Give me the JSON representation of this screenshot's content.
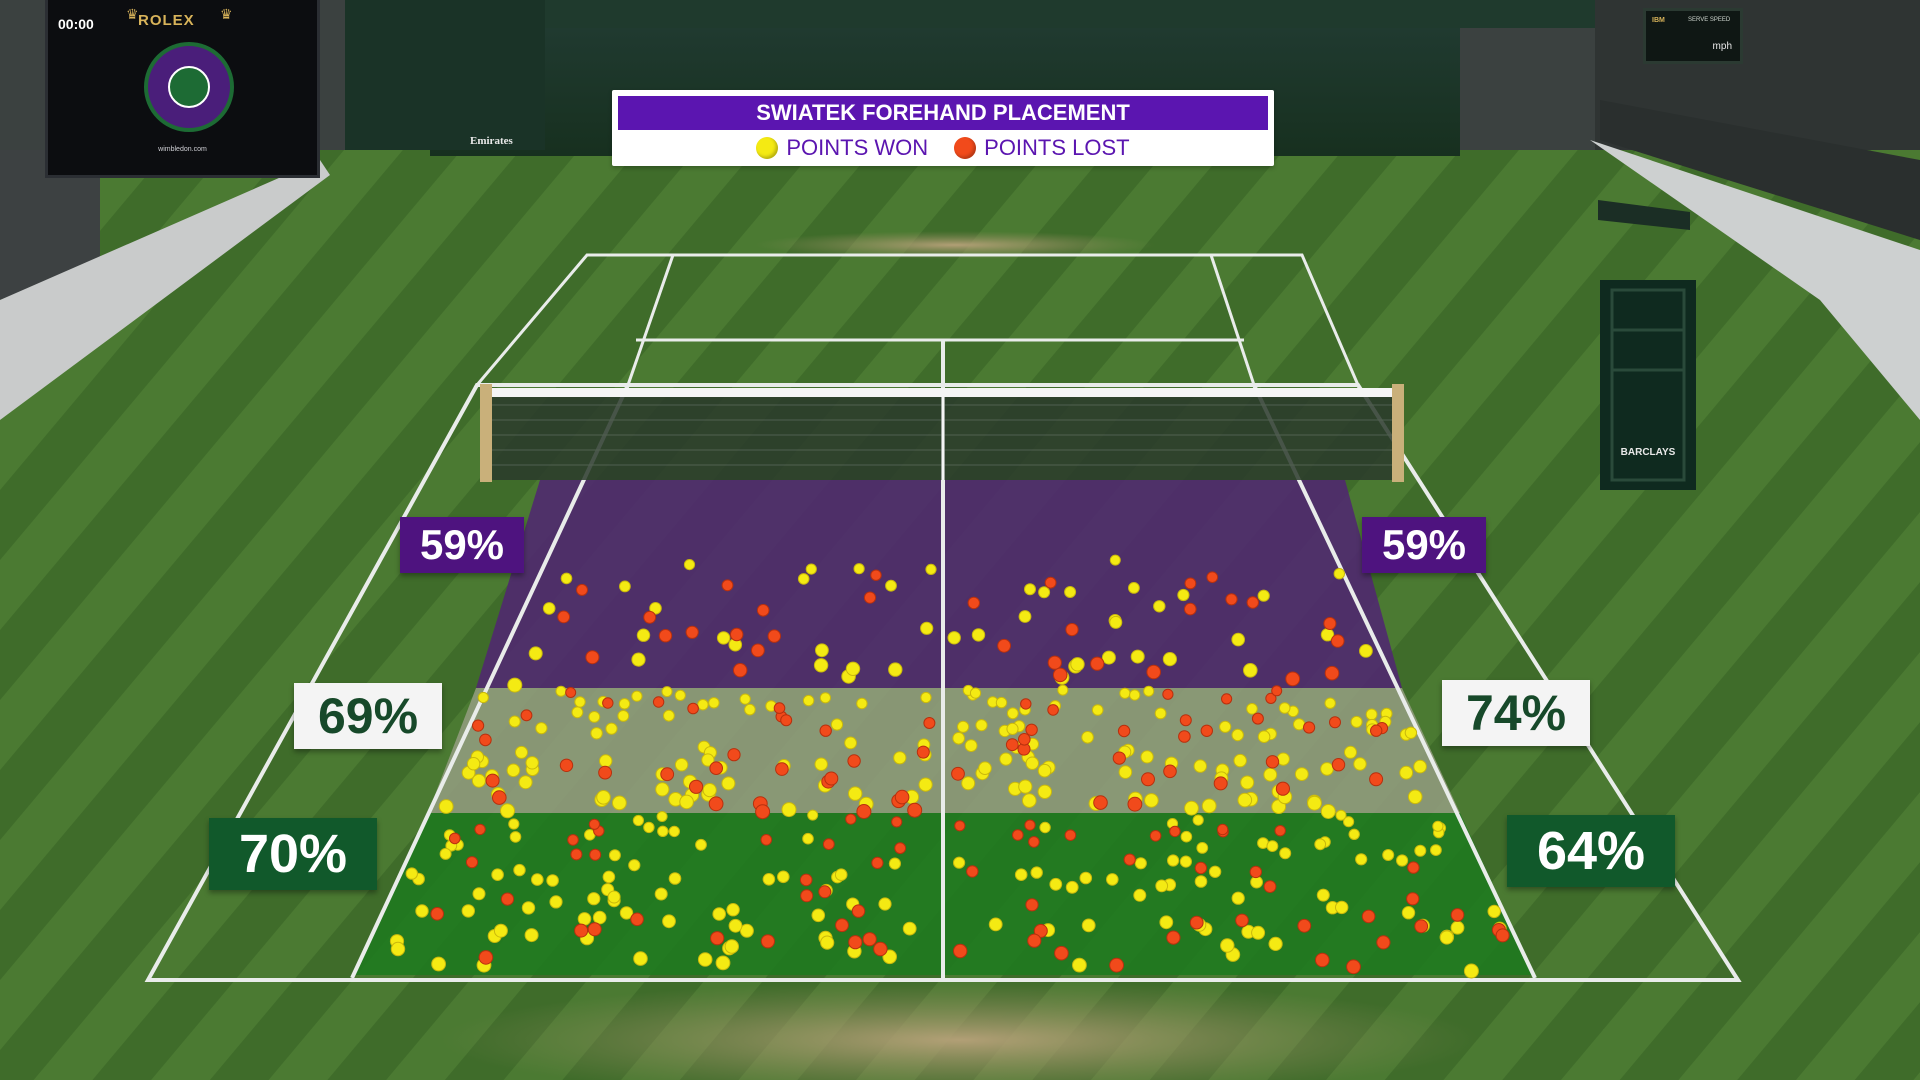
{
  "banner": {
    "title": "SWIATEK FOREHAND PLACEMENT",
    "legend_won": "POINTS WON",
    "legend_lost": "POINTS LOST",
    "won_color": "#f4ea13",
    "lost_color": "#f14a1b",
    "title_bg": "#5b15b0"
  },
  "scoreboard": {
    "clock": "00:00",
    "brand": "ROLEX",
    "site": "wimbledon.com"
  },
  "speedboard": {
    "sponsor": "IBM",
    "title": "SERVE SPEED",
    "unit": "mph"
  },
  "court_signage": {
    "left": "Emirates",
    "chair": "BARCLAYS"
  },
  "zones": {
    "left_deep": "59%",
    "left_mid": "69%",
    "left_short": "70%",
    "right_deep": "59%",
    "right_mid": "74%",
    "right_short": "64%"
  },
  "colors": {
    "zone_deep": "#4f2a6e",
    "zone_mid": "#8e9a7b",
    "zone_short": "#1f7a1f"
  },
  "icons": [
    "won-ball-icon",
    "lost-ball-icon",
    "wimbledon-logo-icon",
    "crown-icon"
  ]
}
